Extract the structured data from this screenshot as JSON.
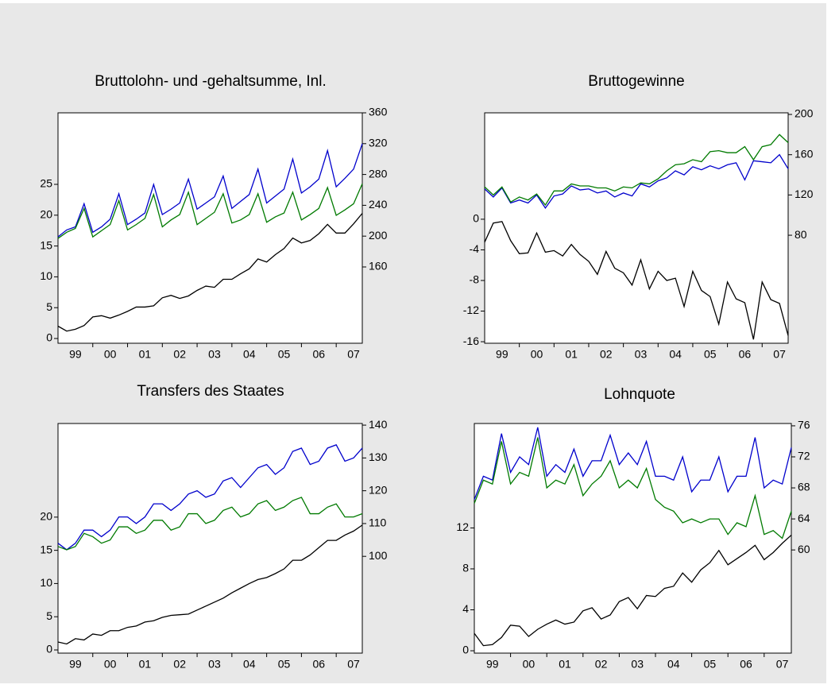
{
  "chart_data": [
    {
      "type": "line",
      "title": "Bruttolohn- und -gehaltsumme, Inl.",
      "x": [
        1999,
        1999.25,
        1999.5,
        1999.75,
        2000,
        2000.25,
        2000.5,
        2000.75,
        2001,
        2001.25,
        2001.5,
        2001.75,
        2002,
        2002.25,
        2002.5,
        2002.75,
        2003,
        2003.25,
        2003.5,
        2003.75,
        2004,
        2004.25,
        2004.5,
        2004.75,
        2005,
        2005.25,
        2005.5,
        2005.75,
        2006,
        2006.25,
        2006.5,
        2006.75,
        2007,
        2007.25,
        2007.5,
        2007.75
      ],
      "xlim": [
        1999,
        2007.75
      ],
      "xticks": [
        {
          "value": 1999.5,
          "label": "99"
        },
        {
          "value": 2000.5,
          "label": "00"
        },
        {
          "value": 2001.5,
          "label": "01"
        },
        {
          "value": 2002.5,
          "label": "02"
        },
        {
          "value": 2003.5,
          "label": "03"
        },
        {
          "value": 2004.5,
          "label": "04"
        },
        {
          "value": 2005.5,
          "label": "05"
        },
        {
          "value": 2006.5,
          "label": "06"
        },
        {
          "value": 2007.5,
          "label": "07"
        }
      ],
      "ylim": [
        -0.77,
        36.6
      ],
      "yticks": [
        0,
        5,
        10,
        15,
        20,
        25
      ],
      "y2lim": [
        61,
        360
      ],
      "y2ticks": [
        160,
        200,
        240,
        280,
        320,
        360
      ],
      "series": [
        {
          "color": "#000000",
          "values": [
            2.0,
            1.2,
            1.5,
            2.1,
            3.5,
            3.7,
            3.3,
            3.8,
            4.4,
            5.1,
            5.1,
            5.3,
            6.6,
            7.0,
            6.5,
            6.9,
            7.8,
            8.5,
            8.3,
            9.6,
            9.6,
            10.5,
            11.3,
            12.9,
            12.4,
            13.6,
            14.6,
            16.3,
            15.5,
            15.9,
            17.0,
            18.5,
            17.1,
            17.1,
            18.6,
            20.3
          ]
        },
        {
          "color": "#0000cc",
          "axis": "y2",
          "values": [
            199,
            208,
            212,
            242,
            205,
            212,
            222,
            255,
            215,
            222,
            230,
            267,
            228,
            235,
            243,
            274,
            235,
            243,
            251,
            278,
            236,
            245,
            254,
            287,
            243,
            252,
            261,
            300,
            256,
            264,
            274,
            311,
            264,
            275,
            287,
            320
          ]
        },
        {
          "color": "#007a00",
          "axis": "y2",
          "values": [
            197,
            205,
            210,
            236,
            199,
            207,
            215,
            246,
            208,
            215,
            223,
            254,
            212,
            221,
            228,
            257,
            215,
            223,
            231,
            255,
            217,
            221,
            228,
            255,
            218,
            225,
            230,
            257,
            221,
            228,
            236,
            263,
            227,
            234,
            242,
            268
          ]
        }
      ]
    },
    {
      "type": "line",
      "title": "Bruttogewinne",
      "x": [
        1999,
        1999.25,
        1999.5,
        1999.75,
        2000,
        2000.25,
        2000.5,
        2000.75,
        2001,
        2001.25,
        2001.5,
        2001.75,
        2002,
        2002.25,
        2002.5,
        2002.75,
        2003,
        2003.25,
        2003.5,
        2003.75,
        2004,
        2004.25,
        2004.5,
        2004.75,
        2005,
        2005.25,
        2005.5,
        2005.75,
        2006,
        2006.25,
        2006.5,
        2006.75,
        2007,
        2007.25,
        2007.5,
        2007.75
      ],
      "xlim": [
        1999,
        2007.75
      ],
      "xticks": [
        {
          "value": 1999.5,
          "label": "99"
        },
        {
          "value": 2000.5,
          "label": "00"
        },
        {
          "value": 2001.5,
          "label": "01"
        },
        {
          "value": 2002.5,
          "label": "02"
        },
        {
          "value": 2003.5,
          "label": "03"
        },
        {
          "value": 2004.5,
          "label": "04"
        },
        {
          "value": 2005.5,
          "label": "05"
        },
        {
          "value": 2006.5,
          "label": "06"
        },
        {
          "value": 2007.5,
          "label": "07"
        }
      ],
      "ylim": [
        -16.2,
        13.9
      ],
      "yticks": [
        -16,
        -12,
        -8,
        -4,
        0
      ],
      "y2lim": [
        -27.3,
        201.6
      ],
      "y2ticks": [
        80,
        120,
        160,
        200
      ],
      "series": [
        {
          "color": "#000000",
          "values": [
            -3,
            -0.5,
            -0.3,
            -2.8,
            -4.5,
            -4.4,
            -1.8,
            -4.3,
            -4.1,
            -4.8,
            -3.3,
            -4.6,
            -5.5,
            -7.2,
            -4.2,
            -6.4,
            -7.0,
            -8.6,
            -5.3,
            -9.1,
            -6.8,
            -8.0,
            -7.7,
            -11.4,
            -6.8,
            -9.3,
            -10.1,
            -13.7,
            -8.2,
            -10.4,
            -10.9,
            -15.7,
            -8.2,
            -10.5,
            -11.0,
            -15.2
          ]
        },
        {
          "color": "#0000cc",
          "axis": "y2",
          "values": [
            126,
            118,
            127,
            112,
            115,
            112,
            120,
            107,
            119,
            121,
            129,
            125,
            126,
            122,
            124,
            118,
            122,
            119,
            131,
            128,
            134,
            137,
            144,
            140,
            148,
            145,
            149,
            146,
            150,
            152,
            135,
            154,
            153,
            152,
            160,
            146
          ]
        },
        {
          "color": "#007a00",
          "axis": "y2",
          "values": [
            128,
            120,
            128,
            113,
            118,
            115,
            121,
            110,
            124,
            124,
            131,
            129,
            129,
            127,
            127,
            124,
            128,
            127,
            132,
            131,
            136,
            144,
            150,
            151,
            155,
            153,
            163,
            164,
            162,
            162,
            168,
            155,
            168,
            170,
            180,
            172
          ]
        }
      ]
    },
    {
      "type": "line",
      "title": "Transfers des Staates",
      "x": [
        1999,
        1999.25,
        1999.5,
        1999.75,
        2000,
        2000.25,
        2000.5,
        2000.75,
        2001,
        2001.25,
        2001.5,
        2001.75,
        2002,
        2002.25,
        2002.5,
        2002.75,
        2003,
        2003.25,
        2003.5,
        2003.75,
        2004,
        2004.25,
        2004.5,
        2004.75,
        2005,
        2005.25,
        2005.5,
        2005.75,
        2006,
        2006.25,
        2006.5,
        2006.75,
        2007,
        2007.25,
        2007.5,
        2007.75
      ],
      "xlim": [
        1999,
        2007.75
      ],
      "xticks": [
        {
          "value": 1999.5,
          "label": "99"
        },
        {
          "value": 2000.5,
          "label": "00"
        },
        {
          "value": 2001.5,
          "label": "01"
        },
        {
          "value": 2002.5,
          "label": "02"
        },
        {
          "value": 2003.5,
          "label": "03"
        },
        {
          "value": 2004.5,
          "label": "04"
        },
        {
          "value": 2005.5,
          "label": "05"
        },
        {
          "value": 2006.5,
          "label": "06"
        },
        {
          "value": 2007.5,
          "label": "07"
        }
      ],
      "ylim": [
        -0.48,
        34.1
      ],
      "yticks": [
        0,
        5,
        10,
        15,
        20
      ],
      "y2lim": [
        70.5,
        140.5
      ],
      "y2ticks": [
        100,
        110,
        120,
        130,
        140
      ],
      "series": [
        {
          "color": "#000000",
          "values": [
            1.2,
            0.9,
            1.7,
            1.5,
            2.4,
            2.2,
            2.9,
            2.9,
            3.4,
            3.6,
            4.2,
            4.4,
            4.9,
            5.2,
            5.3,
            5.4,
            6.0,
            6.6,
            7.2,
            7.8,
            8.6,
            9.3,
            10.0,
            10.6,
            10.9,
            11.5,
            12.2,
            13.5,
            13.5,
            14.3,
            15.4,
            16.5,
            16.5,
            17.3,
            17.9,
            18.8
          ]
        },
        {
          "color": "#0000cc",
          "axis": "y2",
          "values": [
            104,
            102,
            104,
            108,
            108,
            106,
            108,
            112,
            112,
            110,
            112,
            116,
            116,
            114,
            116,
            119,
            120,
            118,
            119,
            123,
            124,
            121,
            124,
            127,
            128,
            125,
            127,
            132,
            133,
            128,
            129,
            133,
            134,
            129,
            130,
            133
          ]
        },
        {
          "color": "#007a00",
          "axis": "y2",
          "values": [
            103,
            102,
            103,
            107,
            106,
            104,
            105,
            109,
            109,
            107,
            108,
            111,
            111,
            108,
            109,
            113,
            113,
            110,
            111,
            114,
            115,
            112,
            113,
            116,
            117,
            114,
            115,
            117,
            118,
            113,
            113,
            115,
            116,
            112,
            112,
            113
          ]
        }
      ]
    },
    {
      "type": "line",
      "title": "Lohnquote",
      "x": [
        1999,
        1999.25,
        1999.5,
        1999.75,
        2000,
        2000.25,
        2000.5,
        2000.75,
        2001,
        2001.25,
        2001.5,
        2001.75,
        2002,
        2002.25,
        2002.5,
        2002.75,
        2003,
        2003.25,
        2003.5,
        2003.75,
        2004,
        2004.25,
        2004.5,
        2004.75,
        2005,
        2005.25,
        2005.5,
        2005.75,
        2006,
        2006.25,
        2006.5,
        2006.75,
        2007,
        2007.25,
        2007.5,
        2007.75
      ],
      "xlim": [
        1999,
        2007.75
      ],
      "xticks": [
        {
          "value": 1999.5,
          "label": "99"
        },
        {
          "value": 2000.5,
          "label": "00"
        },
        {
          "value": 2001.5,
          "label": "01"
        },
        {
          "value": 2002.5,
          "label": "02"
        },
        {
          "value": 2003.5,
          "label": "03"
        },
        {
          "value": 2004.5,
          "label": "04"
        },
        {
          "value": 2005.5,
          "label": "05"
        },
        {
          "value": 2006.5,
          "label": "06"
        },
        {
          "value": 2007.5,
          "label": "07"
        }
      ],
      "ylim": [
        -0.23,
        22.2
      ],
      "yticks": [
        0,
        4,
        8,
        12
      ],
      "y2lim": [
        46.7,
        76.3
      ],
      "y2ticks": [
        60,
        64,
        68,
        72,
        76
      ],
      "series": [
        {
          "color": "#000000",
          "values": [
            1.7,
            0.5,
            0.6,
            1.3,
            2.5,
            2.4,
            1.4,
            2.1,
            2.6,
            3.0,
            2.6,
            2.8,
            3.9,
            4.2,
            3.1,
            3.5,
            4.8,
            5.2,
            4.1,
            5.4,
            5.3,
            6.1,
            6.3,
            7.6,
            6.7,
            7.9,
            8.6,
            9.8,
            8.4,
            9.0,
            9.6,
            10.3,
            8.9,
            9.6,
            10.5,
            11.3
          ]
        },
        {
          "color": "#0000cc",
          "axis": "y2",
          "values": [
            66.5,
            69.5,
            69,
            75,
            70,
            72,
            71,
            75.8,
            69.5,
            71,
            70,
            73,
            69.5,
            71.5,
            71.5,
            74.8,
            71,
            72.5,
            71,
            74,
            69.5,
            69.5,
            69,
            72,
            67.5,
            69,
            69,
            72,
            67.5,
            69.5,
            69.5,
            74.5,
            68,
            69,
            68.5,
            73.2
          ]
        },
        {
          "color": "#007a00",
          "axis": "y2",
          "values": [
            66,
            69,
            68.5,
            74,
            68.5,
            70,
            69.5,
            74.5,
            68,
            69,
            68.5,
            71,
            67,
            68.5,
            69.5,
            71.5,
            68,
            69,
            68,
            70.5,
            66.5,
            65.5,
            65,
            63.5,
            64,
            63.5,
            64,
            64,
            62,
            63.5,
            63,
            67,
            62,
            62.5,
            61.5,
            65
          ]
        }
      ]
    }
  ]
}
